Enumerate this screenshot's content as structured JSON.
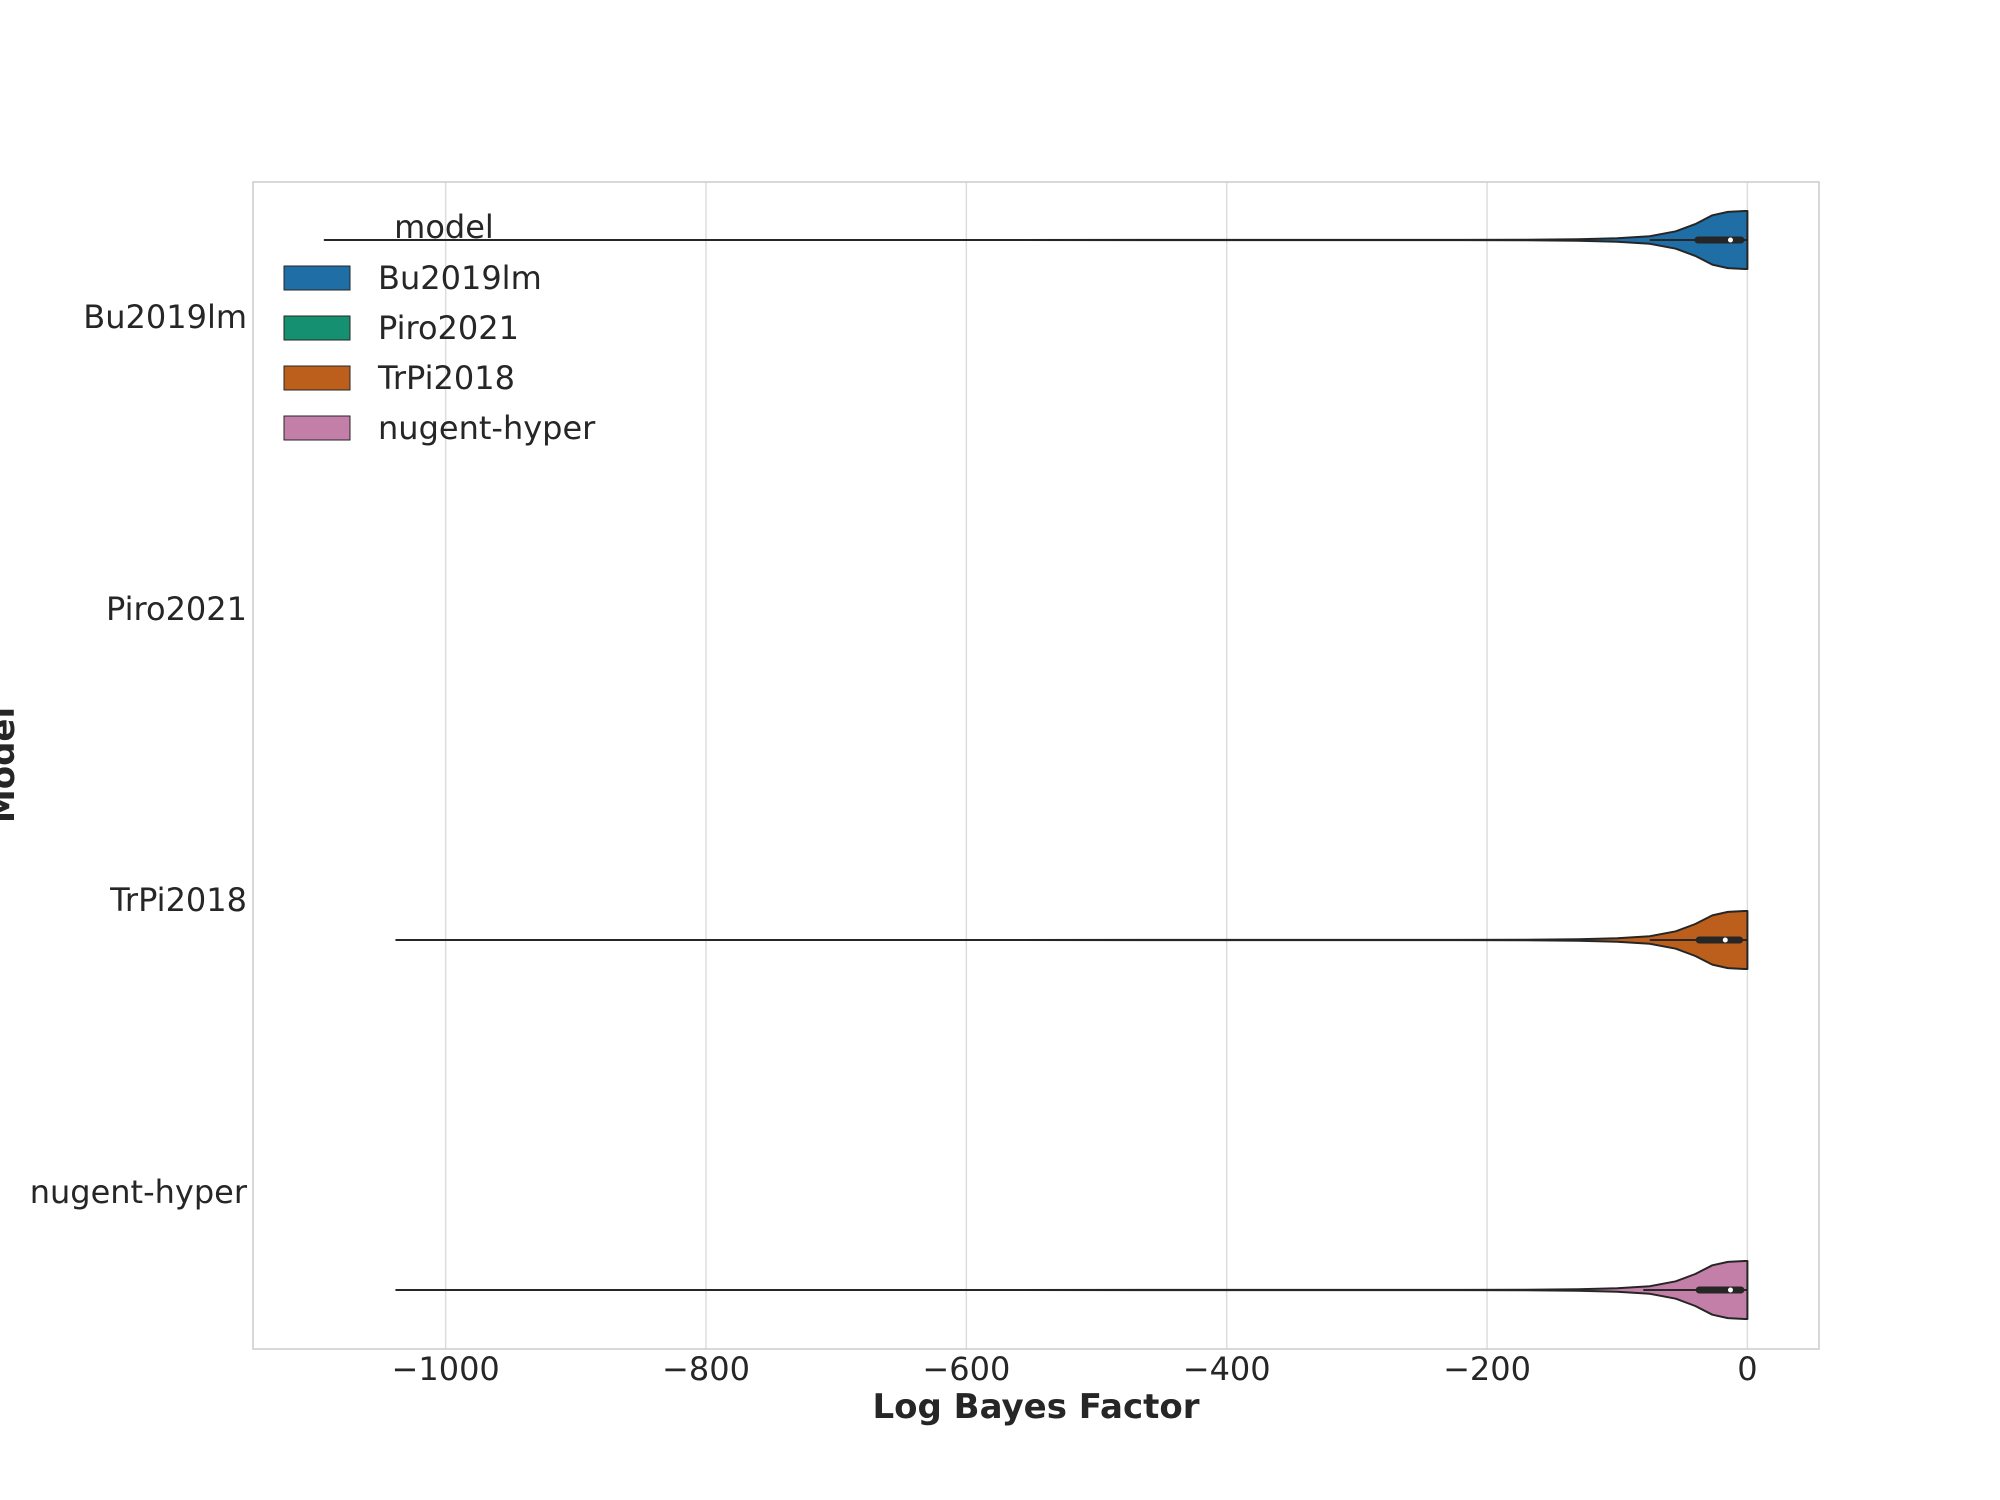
{
  "chart_data": {
    "type": "violin",
    "orientation": "horizontal",
    "xlabel": "Log Bayes Factor",
    "ylabel": "Model",
    "xlim": [
      -1148,
      55
    ],
    "x_ticks": [
      -1000,
      -800,
      -600,
      -400,
      -200,
      0
    ],
    "x_tick_labels": [
      "−1000",
      "−800",
      "−600",
      "−400",
      "−200",
      "0"
    ],
    "grid": true,
    "categories": [
      "Bu2019lm",
      "Piro2021",
      "TrPi2018",
      "nugent-hyper"
    ],
    "legend": {
      "title": "model",
      "placement": "upper-left",
      "entries": [
        "Bu2019lm",
        "Piro2021",
        "TrPi2018",
        "nugent-hyper"
      ]
    },
    "series": [
      {
        "name": "Bu2019lm",
        "color": "#1f6fa6",
        "min": -1093,
        "q1": -38,
        "median": -13,
        "q3": -5,
        "max": 0,
        "whisker_low": -75,
        "has_data": true
      },
      {
        "name": "Piro2021",
        "color": "#159070",
        "has_data": false
      },
      {
        "name": "TrPi2018",
        "color": "#bd5f1c",
        "min": -1038,
        "q1": -37,
        "median": -17,
        "q3": -6,
        "max": 0,
        "whisker_low": -75,
        "has_data": true
      },
      {
        "name": "nugent-hyper",
        "color": "#c47fa8",
        "min": -1038,
        "q1": -37,
        "median": -13,
        "q3": -5,
        "max": 0,
        "whisker_low": -80,
        "has_data": true
      }
    ]
  }
}
